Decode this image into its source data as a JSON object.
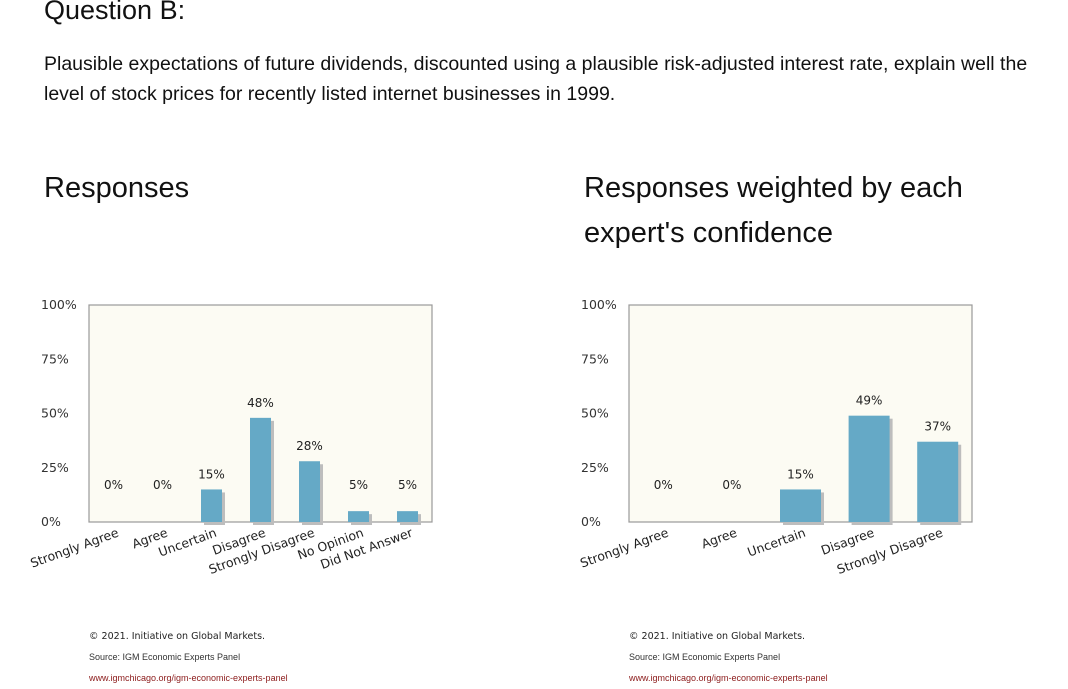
{
  "question": {
    "title": "Question B:",
    "text": "Plausible expectations of future dividends, discounted using a plausible risk-adjusted interest rate, explain well the level of stock prices for recently listed internet businesses in 1999."
  },
  "panels": {
    "left_title": "Responses",
    "right_title": "Responses weighted by each expert's confidence"
  },
  "credits": {
    "copyright": "© 2021. Initiative on Global Markets.",
    "source": "Source: IGM Economic Experts Panel",
    "url": "www.igmchicago.org/igm-economic-experts-panel"
  },
  "colors": {
    "bar": "#65a9c6",
    "plot_background": "#fcfbf3"
  },
  "chart_data": [
    {
      "type": "bar",
      "title": "Responses",
      "categories": [
        "Strongly Agree",
        "Agree",
        "Uncertain",
        "Disagree",
        "Strongly Disagree",
        "No Opinion",
        "Did Not Answer"
      ],
      "values": [
        0,
        0,
        15,
        48,
        28,
        5,
        5
      ],
      "data_labels": [
        "0%",
        "0%",
        "15%",
        "48%",
        "28%",
        "5%",
        "5%"
      ],
      "yticks": [
        "0%",
        "25%",
        "50%",
        "75%",
        "100%"
      ],
      "ylim": [
        0,
        100
      ],
      "grid": false,
      "legend": "none"
    },
    {
      "type": "bar",
      "title": "Responses weighted by each expert's confidence",
      "categories": [
        "Strongly Agree",
        "Agree",
        "Uncertain",
        "Disagree",
        "Strongly Disagree"
      ],
      "values": [
        0,
        0,
        15,
        49,
        37
      ],
      "data_labels": [
        "0%",
        "0%",
        "15%",
        "49%",
        "37%"
      ],
      "yticks": [
        "0%",
        "25%",
        "50%",
        "75%",
        "100%"
      ],
      "ylim": [
        0,
        100
      ],
      "grid": false,
      "legend": "none"
    }
  ]
}
